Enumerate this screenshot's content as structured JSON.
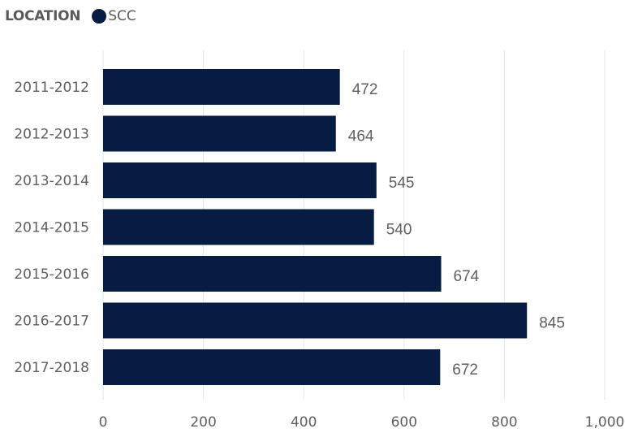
{
  "legend": {
    "title": "LOCATION",
    "items": [
      {
        "label": "SCC",
        "color": "#061c42"
      }
    ]
  },
  "chart_data": {
    "type": "bar",
    "orientation": "horizontal",
    "categories": [
      "2011-2012",
      "2012-2013",
      "2013-2014",
      "2014-2015",
      "2015-2016",
      "2016-2017",
      "2017-2018"
    ],
    "series": [
      {
        "name": "SCC",
        "values": [
          472,
          464,
          545,
          540,
          674,
          845,
          672
        ],
        "color": "#061c42"
      }
    ],
    "xlim": [
      0,
      1000
    ],
    "xticks": [
      0,
      200,
      400,
      600,
      800,
      1000
    ],
    "xtick_labels": [
      "0",
      "200",
      "400",
      "600",
      "800",
      "1,000"
    ],
    "grid": true,
    "data_labels": true,
    "legend_position": "top-left"
  }
}
